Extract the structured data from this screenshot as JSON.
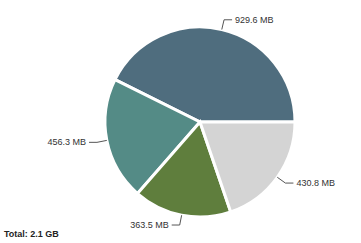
{
  "chart_data": {
    "type": "pie",
    "values": [
      929.6,
      456.3,
      363.5,
      430.8
    ],
    "value_labels": [
      "929.6 MB",
      "456.3 MB",
      "363.5 MB",
      "430.8 MB"
    ],
    "colors": [
      "#4f6d7e",
      "#548b86",
      "#5f7e3d",
      "#d4d4d4"
    ],
    "data_labels": true,
    "annotations": [
      "Total: 2.1 GB"
    ]
  }
}
